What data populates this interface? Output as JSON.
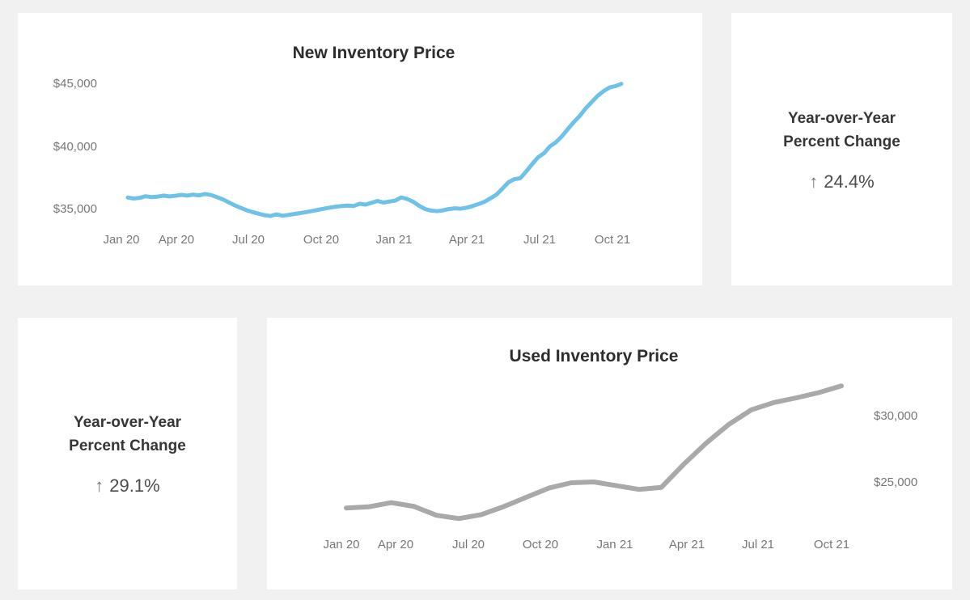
{
  "colors": {
    "page_background": "#f1f1f1",
    "panel_background": "#ffffff",
    "new_line": "#6ec1e8",
    "used_line": "#a9a9a9",
    "title_text": "#2d2d2d",
    "tick_text": "#777777",
    "yoy_heading_text": "#363636",
    "yoy_value_text": "#4b4b4b"
  },
  "yoy_new": {
    "heading_line1": "Year-over-Year",
    "heading_line2": "Percent Change",
    "arrow": "↑",
    "direction": "up",
    "value": "24.4%"
  },
  "yoy_used": {
    "heading_line1": "Year-over-Year",
    "heading_line2": "Percent Change",
    "arrow": "↑",
    "direction": "up",
    "value": "29.1%"
  },
  "chart_data": [
    {
      "id": "new-inventory",
      "type": "line",
      "title": "New Inventory Price",
      "x_range": [
        "Jan 2020",
        "Nov 2021"
      ],
      "x_axis": {
        "ticks": [
          "Jan 20",
          "Apr 20",
          "Jul 20",
          "Oct 20",
          "Jan 21",
          "Apr 21",
          "Jul 21",
          "Oct 21"
        ]
      },
      "y_axis": {
        "side": "left",
        "range": [
          33800,
          46200
        ],
        "ticks": [
          {
            "label": "$45,000",
            "value": 45000
          },
          {
            "label": "$40,000",
            "value": 40000
          },
          {
            "label": "$35,000",
            "value": 35000
          }
        ]
      },
      "grid": false,
      "legend": false,
      "series": [
        {
          "name": "New Inventory Price",
          "color": "#6ec1e8",
          "values": [
            35950,
            35870,
            35920,
            36050,
            35980,
            36020,
            36100,
            36040,
            36090,
            36160,
            36100,
            36180,
            36120,
            36230,
            36150,
            35980,
            35800,
            35560,
            35320,
            35120,
            34930,
            34790,
            34660,
            34540,
            34480,
            34610,
            34500,
            34560,
            34640,
            34710,
            34790,
            34880,
            34970,
            35060,
            35150,
            35220,
            35280,
            35310,
            35280,
            35450,
            35390,
            35530,
            35680,
            35550,
            35630,
            35710,
            35960,
            35830,
            35610,
            35290,
            35030,
            34910,
            34860,
            34930,
            35030,
            35090,
            35060,
            35140,
            35270,
            35430,
            35610,
            35890,
            36190,
            36660,
            37160,
            37410,
            37490,
            38030,
            38610,
            39160,
            39490,
            40030,
            40360,
            40830,
            41410,
            41960,
            42460,
            43060,
            43560,
            44060,
            44430,
            44730,
            44840,
            45020
          ]
        }
      ]
    },
    {
      "id": "used-inventory",
      "type": "line",
      "title": "Used Inventory Price",
      "x_range": [
        "Jan 2020",
        "Nov 2021"
      ],
      "x_axis": {
        "ticks": [
          "Jan 20",
          "Apr 20",
          "Jul 20",
          "Oct 20",
          "Jan 21",
          "Apr 21",
          "Jul 21",
          "Oct 21"
        ]
      },
      "y_axis": {
        "side": "right",
        "range": [
          21800,
          33000
        ],
        "ticks": [
          {
            "label": "$30,000",
            "value": 30000
          },
          {
            "label": "$25,000",
            "value": 25000
          }
        ]
      },
      "grid": false,
      "legend": false,
      "series": [
        {
          "name": "Used Inventory Price",
          "color": "#a9a9a9",
          "values": [
            23100,
            23180,
            23500,
            23220,
            22550,
            22300,
            22600,
            23200,
            23900,
            24600,
            25000,
            25060,
            24780,
            24500,
            24650,
            26400,
            28000,
            29400,
            30500,
            31050,
            31400,
            31800,
            32300
          ]
        }
      ]
    }
  ]
}
